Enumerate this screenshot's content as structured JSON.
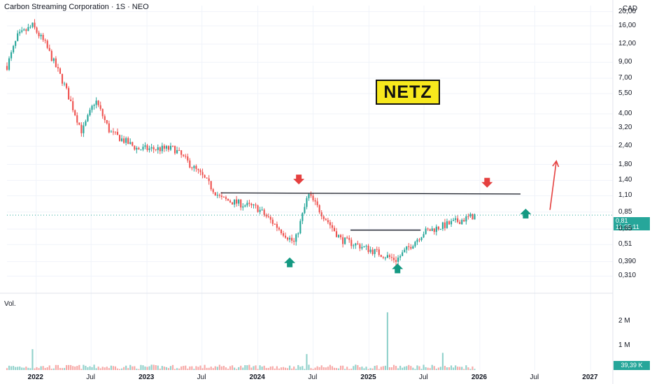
{
  "header": {
    "title": "Carbon Streaming Corporation · 1S · NEO"
  },
  "currency": "CAD",
  "ticker_badge": "NETZ",
  "volume_title": "Vol.",
  "price_tag": {
    "price": "0,81",
    "countdown": "11:25:11"
  },
  "volume_tag": "39,39 K",
  "colors": {
    "up": "#26a69a",
    "down": "#ef5350",
    "arrow_up": "#149982",
    "arrow_down": "#e5403f",
    "badge_bg": "#f7e81d",
    "grid": "#f0f3fa"
  },
  "chart_data": {
    "type": "candlestick",
    "title": "Carbon Streaming Corporation · 1S · NEO",
    "y_scale": "log",
    "y_range": [
      0.25,
      22
    ],
    "price_ticks": [
      "20,00",
      "16,00",
      "12,00",
      "9,00",
      "7,00",
      "5,50",
      "4,00",
      "3,20",
      "2,40",
      "1,80",
      "1,40",
      "1,10",
      "0,85",
      "0,65",
      "0,51",
      "0,390",
      "0,310"
    ],
    "volume_ticks": [
      "2 M",
      "1 M"
    ],
    "x_labels": [
      "2022",
      "Jul",
      "2023",
      "Jul",
      "2024",
      "Jul",
      "2025",
      "Jul",
      "2026",
      "Jul",
      "2027"
    ],
    "x_range": [
      "2021-09-27",
      "2027-03-15"
    ],
    "key_prices": [
      {
        "date": "2021-09-27",
        "close": 8.5
      },
      {
        "date": "2021-11-01",
        "close": 13.5
      },
      {
        "date": "2021-12-20",
        "close": 16.0
      },
      {
        "date": "2022-01-31",
        "close": 12.0
      },
      {
        "date": "2022-04-01",
        "close": 6.5
      },
      {
        "date": "2022-06-01",
        "close": 3.0
      },
      {
        "date": "2022-07-15",
        "close": 5.0
      },
      {
        "date": "2022-09-01",
        "close": 3.0
      },
      {
        "date": "2022-12-01",
        "close": 2.3
      },
      {
        "date": "2023-04-01",
        "close": 2.3
      },
      {
        "date": "2023-07-01",
        "close": 1.5
      },
      {
        "date": "2023-09-01",
        "close": 1.05
      },
      {
        "date": "2024-01-01",
        "close": 0.9
      },
      {
        "date": "2024-05-01",
        "close": 0.52
      },
      {
        "date": "2024-06-15",
        "close": 1.12
      },
      {
        "date": "2024-10-01",
        "close": 0.55
      },
      {
        "date": "2024-12-01",
        "close": 0.5
      },
      {
        "date": "2025-04-01",
        "close": 0.4
      },
      {
        "date": "2025-07-01",
        "close": 0.62
      },
      {
        "date": "2025-12-20",
        "close": 0.81
      }
    ],
    "volume_spikes": [
      {
        "date": "2025-03-03",
        "volume": 2.35
      },
      {
        "date": "2025-09-01",
        "volume": 0.7
      },
      {
        "date": "2024-06-10",
        "volume": 0.65
      },
      {
        "date": "2021-12-20",
        "volume": 0.85
      }
    ],
    "volume_max": 2.7,
    "resistance_line": {
      "from": "2023-09-01",
      "to": "2026-05-15",
      "price_from": 1.15,
      "price_to": 1.13
    },
    "neckline": {
      "from": "2024-11-01",
      "to": "2025-06-20",
      "price": 0.64
    },
    "current_price_line": 0.81,
    "annotations": [
      {
        "kind": "arrow_down",
        "date": "2024-05-15",
        "price": 1.42
      },
      {
        "kind": "arrow_down",
        "date": "2026-01-25",
        "price": 1.35
      },
      {
        "kind": "arrow_up",
        "date": "2024-04-15",
        "price": 0.385
      },
      {
        "kind": "arrow_up",
        "date": "2025-04-05",
        "price": 0.35
      },
      {
        "kind": "arrow_up",
        "date": "2026-06-01",
        "price": 0.83
      },
      {
        "kind": "projection_arrow",
        "from_date": "2026-08-20",
        "from_price": 0.88,
        "to_date": "2026-09-10",
        "to_price": 1.9
      }
    ]
  }
}
